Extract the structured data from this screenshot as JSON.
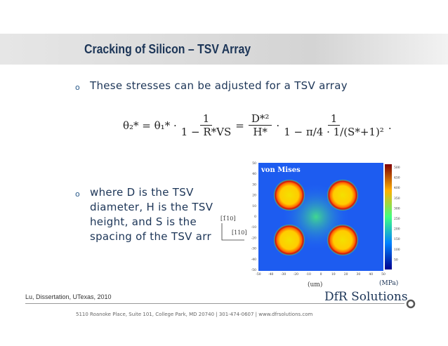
{
  "header": {
    "title": "Cracking of Silicon – TSV Array"
  },
  "bullets": [
    {
      "marker": "o",
      "lines": [
        "These stresses can be adjusted for a TSV array"
      ]
    },
    {
      "marker": "o",
      "lines": [
        "where D is the TSV",
        "diameter, H is the TSV",
        "height, and S is the",
        "spacing of the TSV arr"
      ]
    }
  ],
  "equation": {
    "lhs": "θ₂* = θ₁* ·",
    "frac1": [
      "1",
      "1 − R*VS"
    ],
    "equals": "=",
    "frac2": [
      "D*²",
      "H*"
    ],
    "dot": "·",
    "frac3": [
      "1",
      "1 − π/4 · 1/(S*+1)²"
    ],
    "end": "."
  },
  "figure": {
    "label": "von Mises",
    "x_ticks": [
      -50,
      -40,
      -30,
      -20,
      -10,
      0,
      10,
      20,
      30,
      40,
      50
    ],
    "y_ticks": [
      50,
      40,
      30,
      20,
      10,
      0,
      -10,
      -20,
      -30,
      -40,
      -50
    ],
    "colorbar_ticks": [
      500,
      450,
      400,
      350,
      300,
      250,
      200,
      150,
      100,
      50
    ],
    "x_unit": "(um)",
    "colorbar_unit": "(MPa)",
    "directions": [
      "[1̄10]",
      "[110]"
    ]
  },
  "citation": "Lu, Dissertation, UTexas, 2010",
  "footer": {
    "logo": "DfR Solutions",
    "address": "5110 Roanoke Place, Suite 101, College Park, MD 20740  |  301-474-0607  |  www.dfrsolutions.com"
  }
}
